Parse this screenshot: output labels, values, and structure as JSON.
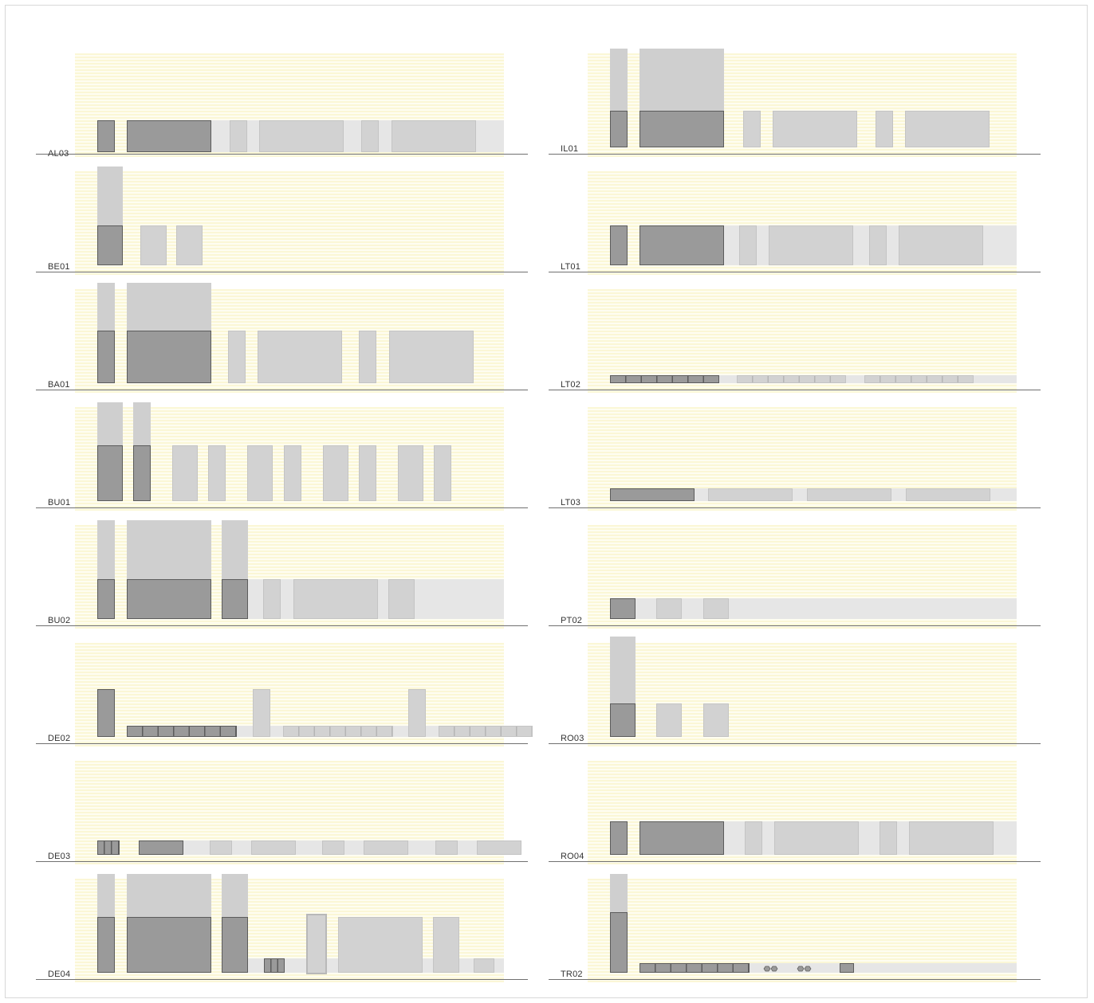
{
  "panels": [
    {
      "id": "AL03",
      "col": 0,
      "row": 0
    },
    {
      "id": "BE01",
      "col": 0,
      "row": 1
    },
    {
      "id": "BA01",
      "col": 0,
      "row": 2
    },
    {
      "id": "BU01",
      "col": 0,
      "row": 3
    },
    {
      "id": "BU02",
      "col": 0,
      "row": 4
    },
    {
      "id": "DE02",
      "col": 0,
      "row": 5
    },
    {
      "id": "DE03",
      "col": 0,
      "row": 6
    },
    {
      "id": "DE04",
      "col": 0,
      "row": 7
    },
    {
      "id": "IL01",
      "col": 1,
      "row": 0
    },
    {
      "id": "LT01",
      "col": 1,
      "row": 1
    },
    {
      "id": "LT02",
      "col": 1,
      "row": 2
    },
    {
      "id": "LT03",
      "col": 1,
      "row": 3
    },
    {
      "id": "PT02",
      "col": 1,
      "row": 4
    },
    {
      "id": "RO03",
      "col": 1,
      "row": 5
    },
    {
      "id": "RO04",
      "col": 1,
      "row": 6
    },
    {
      "id": "TR02",
      "col": 1,
      "row": 7
    }
  ],
  "colors": {
    "background_stripe": "#fbf7d6",
    "element_dark": "#9a9a9a",
    "element_light": "#d2d2d2",
    "strip": "#e6e6e6",
    "baseline": "#707070"
  }
}
